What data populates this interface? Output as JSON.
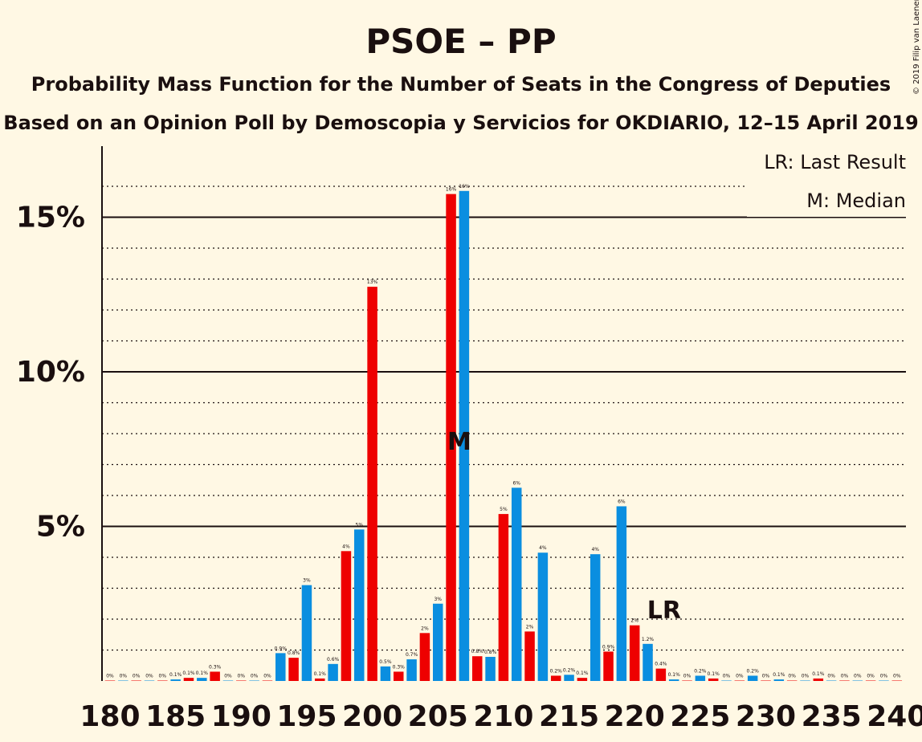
{
  "chart_data": {
    "type": "bar",
    "title": "PSOE – PP",
    "subtitle": "Probability Mass Function for the Number of Seats in the Congress of Deputies",
    "subtitle2": "Based on an Opinion Poll by Demoscopia y Servicios for OKDIARIO, 12–15 April 2019",
    "copyright": "© 2019 Filip van Laenen",
    "legend": {
      "lr": "LR: Last Result",
      "median": "M: Median"
    },
    "ylim": [
      0,
      17.2
    ],
    "y_ticks": [
      {
        "value": 5,
        "label": "5%"
      },
      {
        "value": 10,
        "label": "10%"
      },
      {
        "value": 15,
        "label": "15%"
      }
    ],
    "x_ticks": [
      180,
      185,
      190,
      195,
      200,
      205,
      210,
      215,
      220,
      225,
      230,
      235,
      240
    ],
    "colors": {
      "red": "#ee0000",
      "blue": "#0a8ee0",
      "axis": "#1a0f0f",
      "background": "#fff8e4"
    },
    "median_seat": 207,
    "median_marker": "M",
    "last_result_seat": 222,
    "last_result_marker": "LR",
    "seats": [
      180,
      181,
      182,
      183,
      184,
      185,
      186,
      187,
      188,
      189,
      190,
      191,
      192,
      193,
      194,
      195,
      196,
      197,
      198,
      199,
      200,
      201,
      202,
      203,
      204,
      205,
      206,
      207,
      208,
      209,
      210,
      211,
      212,
      213,
      214,
      215,
      216,
      217,
      218,
      219,
      220,
      221,
      222,
      223,
      224,
      225,
      226,
      227,
      228,
      229,
      230,
      231,
      232,
      233,
      234,
      235,
      236,
      237,
      238,
      239,
      240
    ],
    "values": [
      0.01,
      0.01,
      0.01,
      0.01,
      0.01,
      0.05,
      0.1,
      0.1,
      0.3,
      0.01,
      0.01,
      0.01,
      0.01,
      0.9,
      0.75,
      3.1,
      0.08,
      0.55,
      4.2,
      4.9,
      12.75,
      0.47,
      0.3,
      0.7,
      1.55,
      2.5,
      15.75,
      15.85,
      0.8,
      0.78,
      5.4,
      6.25,
      1.6,
      4.15,
      0.17,
      0.2,
      0.1,
      4.1,
      0.95,
      5.65,
      1.8,
      1.2,
      0.4,
      0.05,
      0.01,
      0.17,
      0.08,
      0.01,
      0.01,
      0.17,
      0.01,
      0.05,
      0.01,
      0.01,
      0.08,
      0.01,
      0.01,
      0.01,
      0.01,
      0.01,
      0.01
    ],
    "labels": [
      "0%",
      "0%",
      "0%",
      "0%",
      "0%",
      "0.1%",
      "0.1%",
      "0.1%",
      "0.3%",
      "0%",
      "0%",
      "0%",
      "0%",
      "0.9%",
      "0.8%",
      "3%",
      "0.1%",
      "0.6%",
      "4%",
      "5%",
      "13%",
      "0.5%",
      "0.3%",
      "0.7%",
      "2%",
      "3%",
      "16%",
      "16%",
      "0.8%",
      "0.8%",
      "5%",
      "6%",
      "2%",
      "4%",
      "0.2%",
      "0.2%",
      "0.1%",
      "4%",
      "0.9%",
      "6%",
      "2%",
      "1.2%",
      "0.4%",
      "0.1%",
      "0%",
      "0.2%",
      "0.1%",
      "0%",
      "0%",
      "0.2%",
      "0%",
      "0.1%",
      "0%",
      "0%",
      "0.1%",
      "0%",
      "0%",
      "0%",
      "0%",
      "0%",
      "0%"
    ]
  }
}
